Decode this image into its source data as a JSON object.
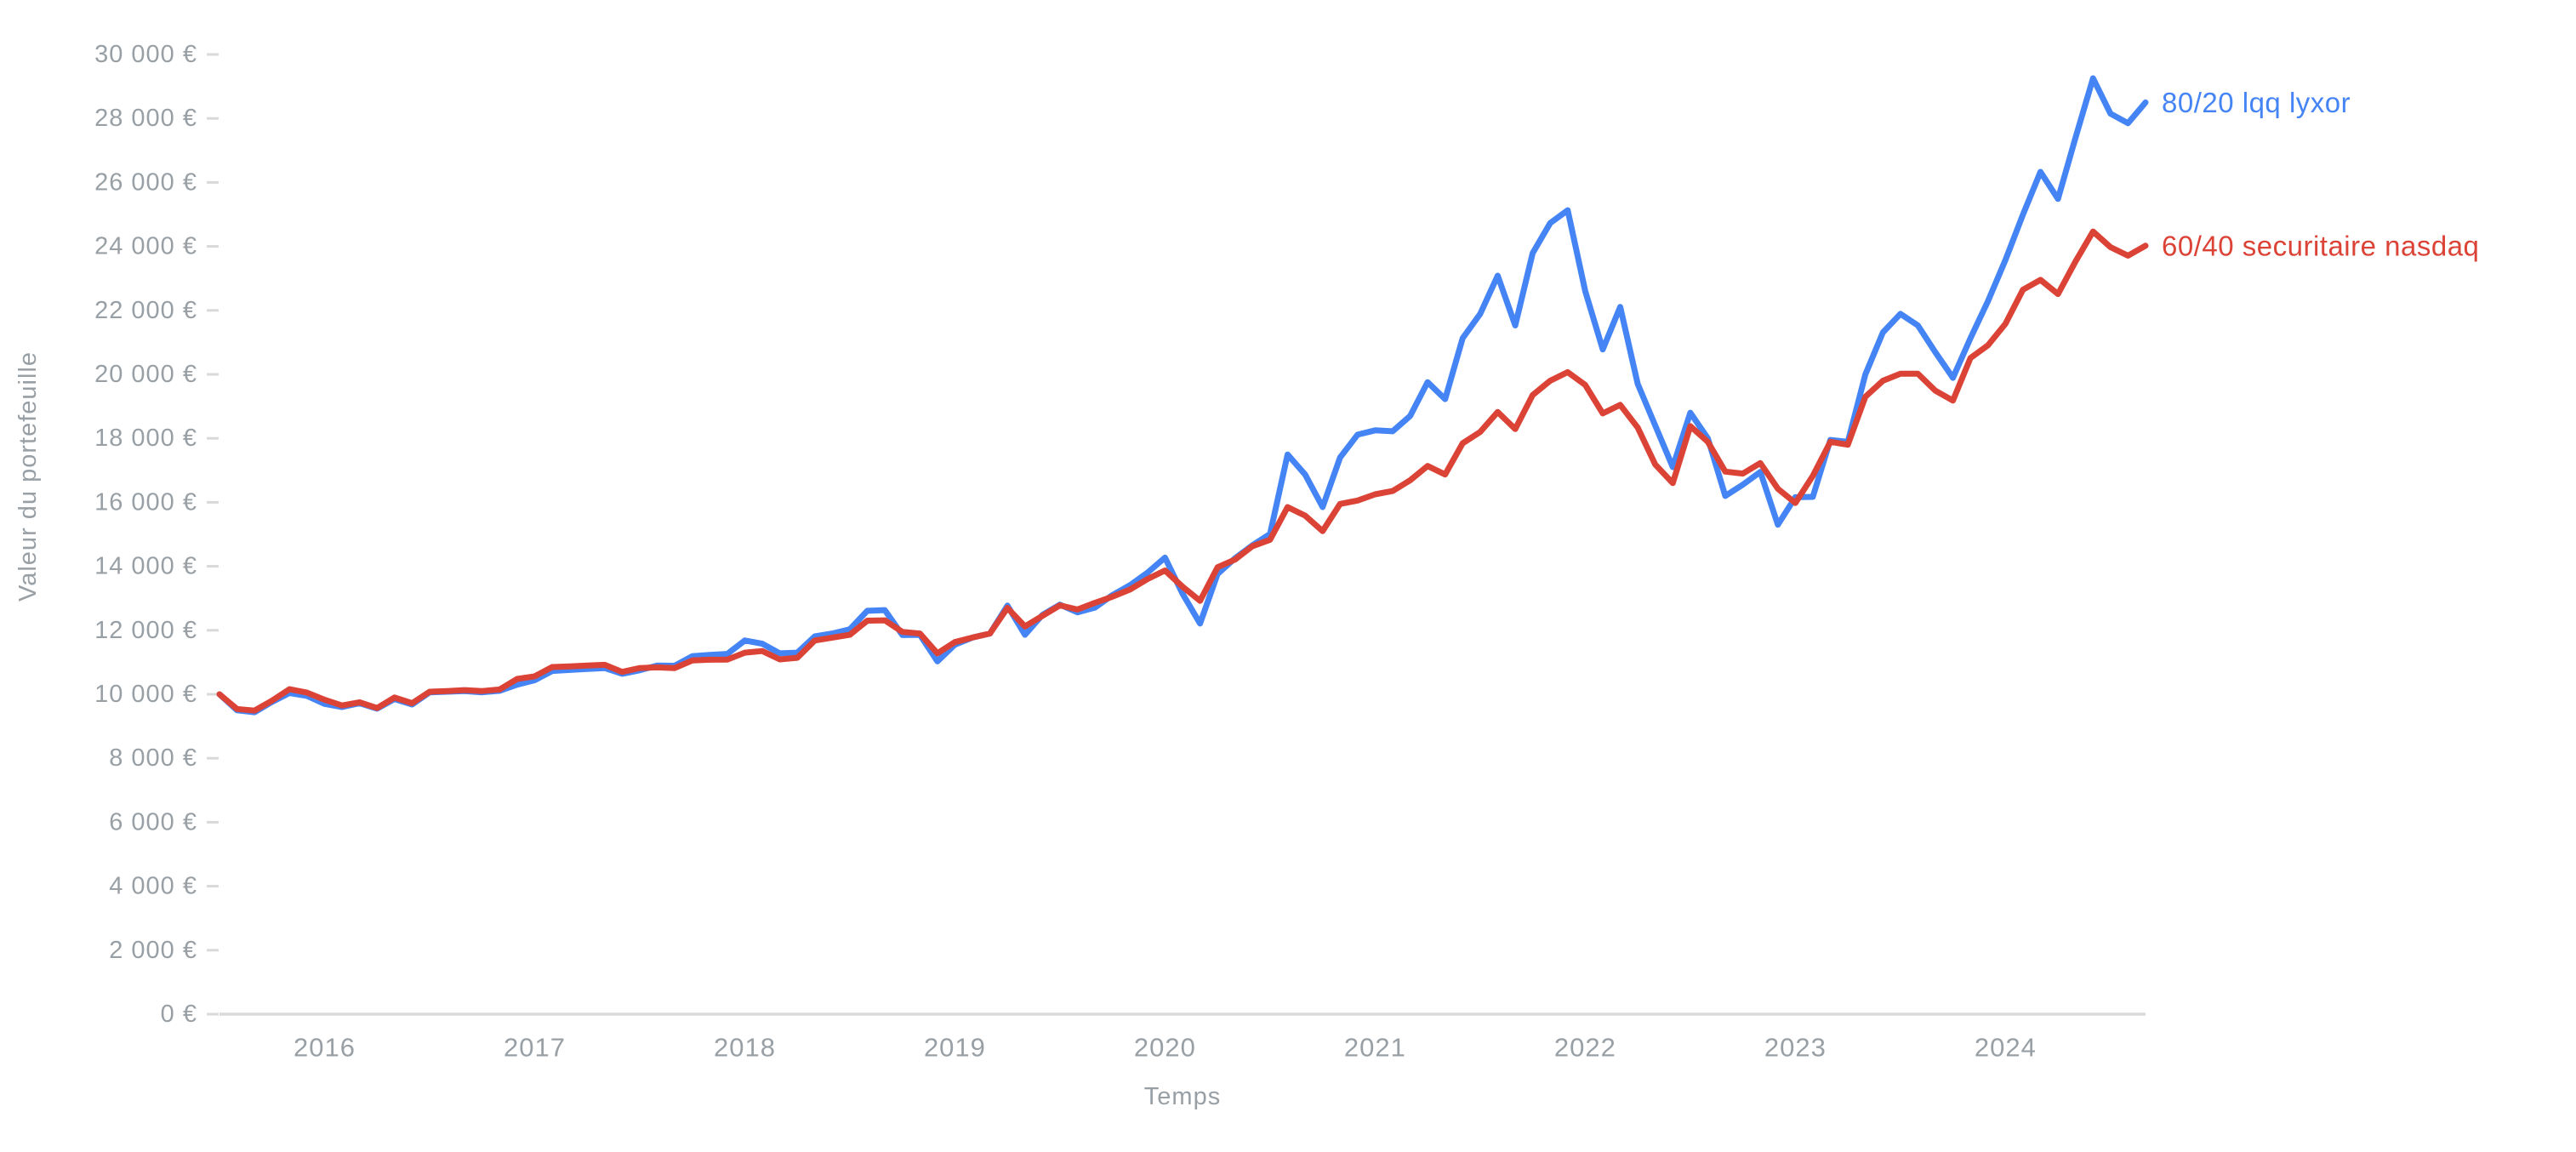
{
  "page": {
    "background": "#ffffff",
    "text_color": "#98a0a6",
    "axis_line_color": "#d9d9d9"
  },
  "chart": {
    "y_axis_title": "Valeur du portefeuille",
    "x_axis_title": "Temps",
    "series_end_labels": [
      {
        "text": "80/20 lqq lyxor",
        "color": "#4584f4"
      },
      {
        "text": "60/40 securitaire nasdaq",
        "color": "#dc4337"
      }
    ]
  },
  "chart_data": {
    "type": "line",
    "title": "",
    "xlabel": "Temps",
    "ylabel": "Valeur du portefeuille",
    "ylim": [
      0,
      30000
    ],
    "y_tick_step": 2000,
    "y_tick_values": [
      0,
      2000,
      4000,
      6000,
      8000,
      10000,
      12000,
      14000,
      16000,
      18000,
      20000,
      22000,
      24000,
      26000,
      28000,
      30000
    ],
    "y_tick_labels": [
      "0 €",
      "2 000 €",
      "4 000 €",
      "6 000 €",
      "8 000 €",
      "10 000 €",
      "12 000 €",
      "14 000 €",
      "16 000 €",
      "18 000 €",
      "20 000 €",
      "22 000 €",
      "24 000 €",
      "26 000 €",
      "28 000 €",
      "30 000 €"
    ],
    "x_start_month": "2015-07",
    "x_end_month": "2024-09",
    "frequency": "monthly",
    "x_year_tick_labels": [
      "2016",
      "2017",
      "2018",
      "2019",
      "2020",
      "2021",
      "2022",
      "2023",
      "2024"
    ],
    "x_index_of_first_year_tick": 6,
    "months_per_year": 12,
    "grid": "off",
    "legend_position": "line-end-right",
    "series": [
      {
        "name": "80/20 lqq lyxor",
        "color": "#4584f4",
        "values": [
          10000,
          9500,
          9440,
          9760,
          10040,
          9950,
          9700,
          9600,
          9720,
          9550,
          9850,
          9680,
          10060,
          10080,
          10100,
          10060,
          10110,
          10300,
          10440,
          10730,
          10760,
          10790,
          10820,
          10640,
          10750,
          10900,
          10890,
          11190,
          11230,
          11260,
          11680,
          11580,
          11280,
          11300,
          11810,
          11900,
          12030,
          12610,
          12630,
          11850,
          11860,
          11030,
          11550,
          11770,
          11900,
          12770,
          11860,
          12480,
          12800,
          12560,
          12710,
          13100,
          13410,
          13800,
          14270,
          13145,
          12210,
          13760,
          14250,
          14660,
          15010,
          17495,
          16870,
          15850,
          17400,
          18115,
          18250,
          18220,
          18700,
          19755,
          19225,
          21130,
          21890,
          23085,
          21530,
          23790,
          24730,
          25130,
          22600,
          20780,
          22110,
          19700,
          18400,
          17100,
          18800,
          18000,
          16200,
          16550,
          16950,
          15300,
          16160,
          16170,
          17950,
          17890,
          20000,
          21310,
          21890,
          21530,
          20690,
          19890,
          21130,
          22290,
          23575,
          24995,
          26330,
          25485,
          27400,
          29255,
          28150,
          27850,
          28500
        ]
      },
      {
        "name": "60/40 securitaire nasdaq",
        "color": "#dc4337",
        "values": [
          10000,
          9540,
          9490,
          9800,
          10160,
          10050,
          9830,
          9650,
          9750,
          9570,
          9900,
          9720,
          10080,
          10100,
          10130,
          10100,
          10150,
          10480,
          10560,
          10850,
          10870,
          10900,
          10920,
          10700,
          10820,
          10840,
          10820,
          11055,
          11080,
          11085,
          11300,
          11350,
          11090,
          11140,
          11680,
          11770,
          11860,
          12300,
          12310,
          11950,
          11900,
          11280,
          11630,
          11770,
          11900,
          12700,
          12120,
          12450,
          12780,
          12650,
          12860,
          13050,
          13275,
          13600,
          13870,
          13365,
          12920,
          13970,
          14210,
          14630,
          14830,
          15850,
          15585,
          15100,
          15950,
          16055,
          16250,
          16355,
          16690,
          17135,
          16870,
          17845,
          18200,
          18825,
          18290,
          19355,
          19800,
          20070,
          19670,
          18780,
          19045,
          18335,
          17180,
          16600,
          18380,
          17890,
          16960,
          16900,
          17225,
          16425,
          15980,
          16825,
          17890,
          17800,
          19300,
          19800,
          20020,
          20020,
          19490,
          19180,
          20510,
          20910,
          21580,
          22645,
          22955,
          22510,
          23530,
          24465,
          23975,
          23710,
          24020
        ]
      }
    ]
  }
}
